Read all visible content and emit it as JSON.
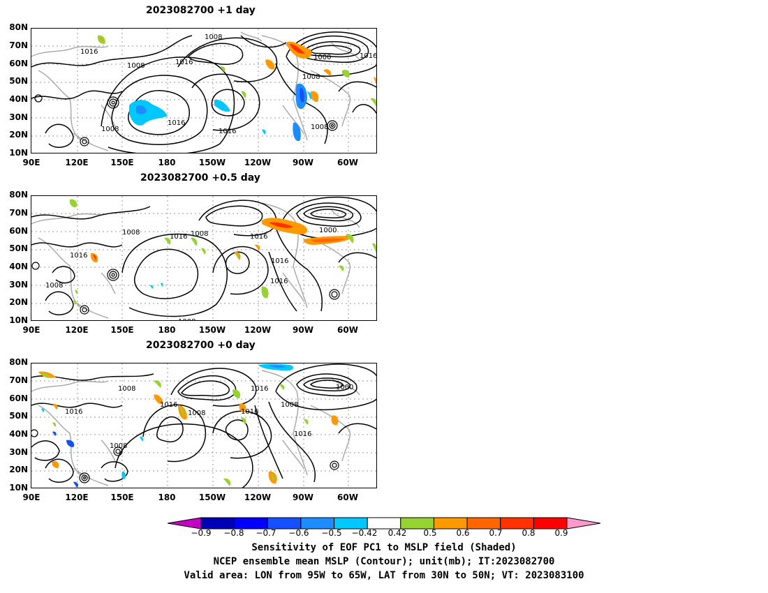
{
  "panels": [
    {
      "title": "2023082700  +1  day",
      "contour_labels": [
        "1008",
        "1016",
        "1008",
        "1016",
        "1008",
        "1016",
        "1016",
        "1008",
        "1000",
        "1008",
        "1016",
        "1008"
      ],
      "lows": [
        {
          "lon": 138,
          "lat": 39
        },
        {
          "lon": 115,
          "lat": 17
        },
        {
          "lon": -73,
          "lat": 26
        }
      ]
    },
    {
      "title": "2023082700  +0.5  day",
      "contour_labels": [
        "1008",
        "1016",
        "1008",
        "1016",
        "1016",
        "1000",
        "1016",
        "1016",
        "1008",
        "1008"
      ],
      "lows": [
        {
          "lon": 138,
          "lat": 35
        },
        {
          "lon": 115,
          "lat": 17
        },
        {
          "lon": -71,
          "lat": 25
        }
      ]
    },
    {
      "title": "2023082700  +0",
      "title_suffix": " day",
      "contour_labels": [
        "1008",
        "1016",
        "1016",
        "1008",
        "1016",
        "1008",
        "1016",
        "1016",
        "1000",
        "1008"
      ],
      "lows": [
        {
          "lon": 115,
          "lat": 16
        },
        {
          "lon": 134,
          "lat": 31
        }
      ]
    }
  ],
  "lat_ticks": [
    "80N",
    "70N",
    "60N",
    "50N",
    "40N",
    "30N",
    "20N",
    "10N"
  ],
  "lon_ticks": [
    "90E",
    "120E",
    "150E",
    "180",
    "150W",
    "120W",
    "90W",
    "60W"
  ],
  "colorbar": {
    "colors": [
      "#c400c4",
      "#0000b4",
      "#0000ff",
      "#1450ff",
      "#1e8cff",
      "#00c8ff",
      "#ffffff",
      "#96d232",
      "#ff9900",
      "#ff6600",
      "#ff3200",
      "#ff0000",
      "#ff99cc"
    ],
    "labels": [
      "−0.9",
      "−0.8",
      "−0.7",
      "−0.6",
      "−0.5",
      "−0.42",
      "0.42",
      "0.5",
      "0.6",
      "0.7",
      "0.8",
      "0.9"
    ]
  },
  "captions": [
    "Sensitivity of EOF PC1 to MSLP field (Shaded)",
    "NCEP ensemble mean MSLP (Contour); unit(mb); IT:2023082700",
    "Valid area: LON from 95W to 65W, LAT from 30N to 50N; VT: 2023083100"
  ]
}
